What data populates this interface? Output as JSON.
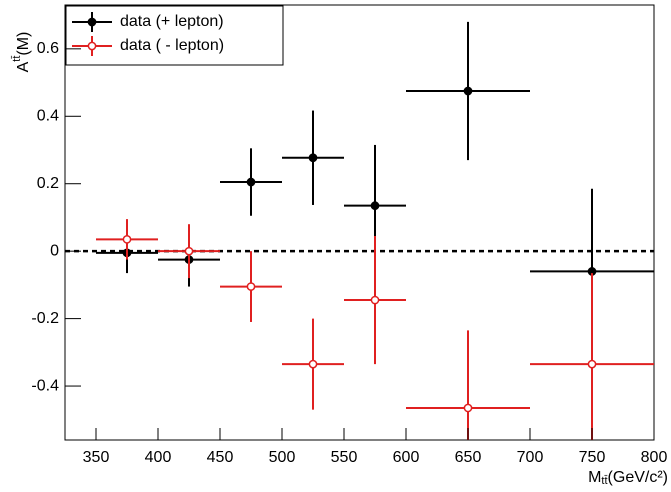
{
  "chart_data": {
    "type": "errorbar",
    "x_label": "M",
    "x_label_sub": "tt̄",
    "x_label_unit": "(GeV/c²)",
    "y_label": "A",
    "y_label_sup": "tt̄",
    "y_label_arg": "(M)",
    "xlim": [
      325,
      800
    ],
    "xticks": [
      350,
      400,
      450,
      500,
      550,
      600,
      650,
      700,
      750,
      800
    ],
    "ylim": [
      -0.56,
      0.73
    ],
    "yticks": [
      -0.4,
      -0.2,
      0,
      0.2,
      0.4,
      0.6
    ],
    "reference_line": 0,
    "legend": "top-left",
    "series": [
      {
        "name": "data (+ lepton)",
        "color": "#000000",
        "marker": "filled",
        "x": [
          375,
          425,
          475,
          525,
          575,
          650,
          750
        ],
        "xerr": [
          25,
          25,
          25,
          25,
          25,
          50,
          50
        ],
        "values": [
          -0.005,
          -0.025,
          0.205,
          0.277,
          0.135,
          0.475,
          -0.06
        ],
        "yerr": [
          0.06,
          0.08,
          0.1,
          0.14,
          0.18,
          0.205,
          0.245
        ]
      },
      {
        "name": "data ( - lepton)",
        "color": "#e02020",
        "marker": "open",
        "x": [
          375,
          425,
          475,
          525,
          575,
          650,
          750
        ],
        "xerr": [
          25,
          25,
          25,
          25,
          25,
          50,
          50
        ],
        "values": [
          0.035,
          0.0,
          -0.105,
          -0.335,
          -0.145,
          -0.465,
          -0.335
        ],
        "yerr": [
          0.06,
          0.08,
          0.105,
          0.135,
          0.19,
          0.23,
          0.27
        ]
      }
    ]
  }
}
